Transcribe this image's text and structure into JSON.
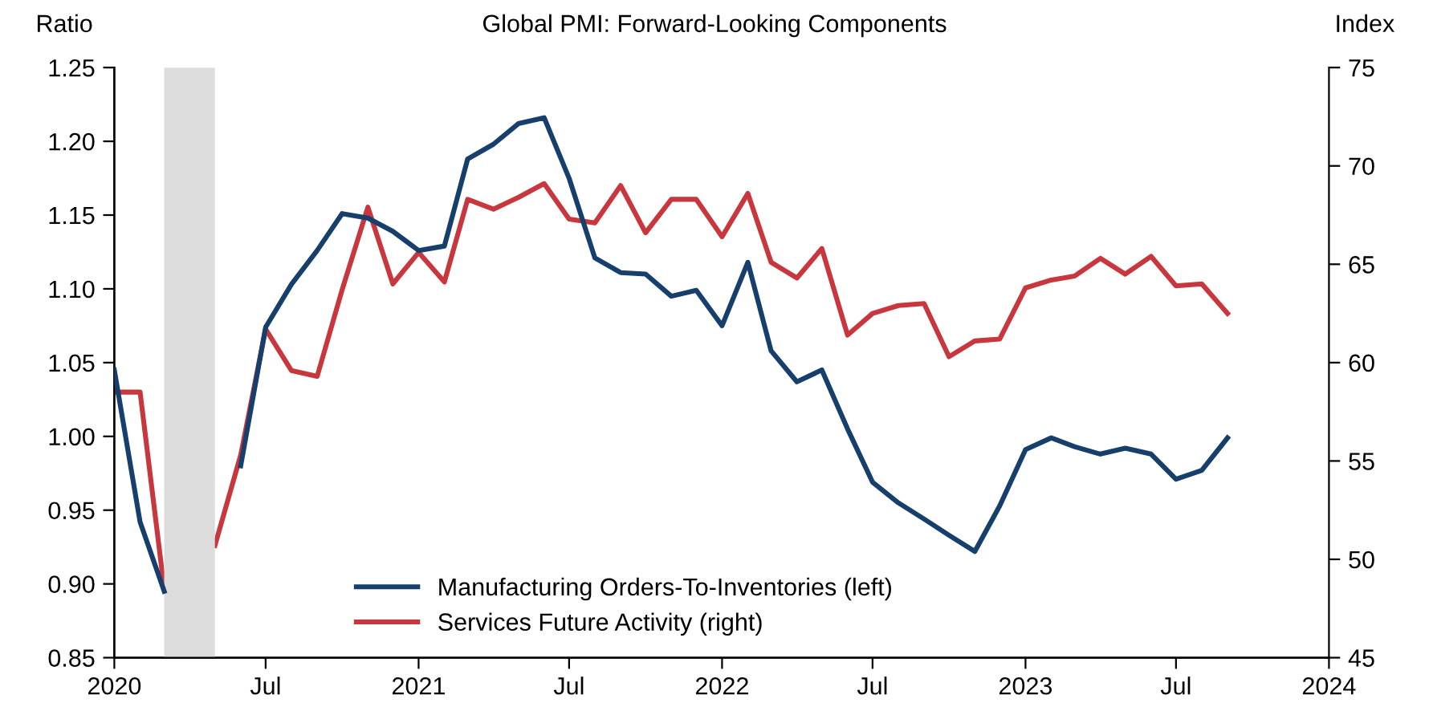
{
  "chart_data": {
    "type": "line",
    "title": "Global PMI: Forward-Looking Components",
    "ylabel": "Ratio",
    "y2label": "Index",
    "x": [
      "2020-01",
      "2020-02",
      "2020-03",
      "2020-04",
      "2020-05",
      "2020-06",
      "2020-07",
      "2020-08",
      "2020-09",
      "2020-10",
      "2020-11",
      "2020-12",
      "2021-01",
      "2021-02",
      "2021-03",
      "2021-04",
      "2021-05",
      "2021-06",
      "2021-07",
      "2021-08",
      "2021-09",
      "2021-10",
      "2021-11",
      "2021-12",
      "2022-01",
      "2022-02",
      "2022-03",
      "2022-04",
      "2022-05",
      "2022-06",
      "2022-07",
      "2022-08",
      "2022-09",
      "2022-10",
      "2022-11",
      "2022-12",
      "2023-01",
      "2023-02",
      "2023-03",
      "2023-04",
      "2023-05",
      "2023-06",
      "2023-07",
      "2023-08",
      "2023-09"
    ],
    "series": [
      {
        "name": "Manufacturing Orders-To-Inventories (left)",
        "color": "#163f6b",
        "axis": "y",
        "values": [
          1.045,
          0.942,
          0.895,
          null,
          null,
          0.98,
          1.074,
          1.103,
          1.126,
          1.151,
          1.148,
          1.139,
          1.126,
          1.129,
          1.188,
          1.198,
          1.212,
          1.216,
          1.175,
          1.121,
          1.111,
          1.11,
          1.095,
          1.099,
          1.075,
          1.118,
          1.058,
          1.037,
          1.045,
          1.005,
          0.969,
          0.955,
          0.944,
          0.933,
          0.922,
          0.953,
          0.991,
          0.999,
          0.993,
          0.988,
          0.992,
          0.988,
          0.971,
          0.977,
          0.999
        ]
      },
      {
        "name": "Services Future Activity (right)",
        "color": "#c8373d",
        "axis": "y2",
        "values": [
          58.5,
          58.5,
          48.5,
          null,
          50.7,
          55.3,
          61.7,
          59.6,
          59.3,
          63.7,
          67.9,
          64.0,
          65.6,
          64.1,
          68.3,
          67.8,
          68.4,
          69.1,
          67.3,
          67.1,
          69.0,
          66.6,
          68.3,
          68.3,
          66.4,
          68.6,
          65.1,
          64.3,
          65.8,
          61.4,
          62.5,
          62.9,
          63.0,
          60.3,
          61.1,
          61.2,
          63.8,
          64.2,
          64.4,
          65.3,
          64.5,
          65.4,
          63.9,
          64.0,
          62.5
        ]
      }
    ],
    "xlim": [
      "2020-01",
      "2024-01"
    ],
    "xticks": [
      {
        "value": "2020-01",
        "label": "2020"
      },
      {
        "value": "2020-07",
        "label": "Jul"
      },
      {
        "value": "2021-01",
        "label": "2021"
      },
      {
        "value": "2021-07",
        "label": "Jul"
      },
      {
        "value": "2022-01",
        "label": "2022"
      },
      {
        "value": "2022-07",
        "label": "Jul"
      },
      {
        "value": "2023-01",
        "label": "2023"
      },
      {
        "value": "2023-07",
        "label": "Jul"
      },
      {
        "value": "2024-01",
        "label": "2024"
      }
    ],
    "ylim": [
      0.85,
      1.25
    ],
    "yticks": [
      {
        "value": 0.85,
        "label": "0.85"
      },
      {
        "value": 0.9,
        "label": "0.90"
      },
      {
        "value": 0.95,
        "label": "0.95"
      },
      {
        "value": 1.0,
        "label": "1.00"
      },
      {
        "value": 1.05,
        "label": "1.05"
      },
      {
        "value": 1.1,
        "label": "1.10"
      },
      {
        "value": 1.15,
        "label": "1.15"
      },
      {
        "value": 1.2,
        "label": "1.20"
      },
      {
        "value": 1.25,
        "label": "1.25"
      }
    ],
    "y2lim": [
      45,
      75
    ],
    "y2ticks": [
      45,
      50,
      55,
      60,
      65,
      70,
      75
    ],
    "bands": [
      {
        "axis": "x",
        "from": "2020-03",
        "to": "2020-05",
        "color": "#dcdcdc"
      }
    ],
    "grid": false,
    "legend": "bottom",
    "line_style": "solid",
    "marker": "none"
  }
}
